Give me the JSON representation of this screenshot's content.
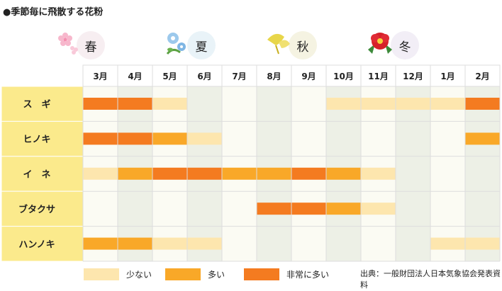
{
  "title": "●季節毎に飛散する花粉",
  "seasons": [
    "春",
    "夏",
    "秋",
    "冬"
  ],
  "months": [
    "3月",
    "4月",
    "5月",
    "6月",
    "7月",
    "8月",
    "9月",
    "10月",
    "11月",
    "12月",
    "1月",
    "2月"
  ],
  "plants": [
    "ス　ギ",
    "ヒノキ",
    "イ　ネ",
    "ブタクサ",
    "ハンノキ"
  ],
  "legend": [
    {
      "label": "少ない",
      "level": 1,
      "color": "#FDE6AE"
    },
    {
      "label": "多い",
      "level": 2,
      "color": "#F9A828"
    },
    {
      "label": "非常に多い",
      "level": 3,
      "color": "#F47B20"
    }
  ],
  "source": "出典：一般財団法人日本気象協会発表資料",
  "colors": {
    "header_bg": "#FBEA8C",
    "season_bg": [
      "#F7EEF1",
      "#E9F3F8",
      "#F5F3E2",
      "#F2EEF6"
    ],
    "grid_line": "#DDDDDD",
    "col_light": "#FBFBF3",
    "col_dark": "#EDF0E6"
  },
  "chart_data": {
    "type": "heatmap",
    "title": "●季節毎に飛散する花粉",
    "x": [
      "3月",
      "4月",
      "5月",
      "6月",
      "7月",
      "8月",
      "9月",
      "10月",
      "11月",
      "12月",
      "1月",
      "2月"
    ],
    "y": [
      "ス　ギ",
      "ヒノキ",
      "イ　ネ",
      "ブタクサ",
      "ハンノキ"
    ],
    "scale": {
      "0": "",
      "1": "少ない",
      "2": "多い",
      "3": "非常に多い"
    },
    "values": [
      [
        3,
        3,
        1,
        0,
        0,
        0,
        0,
        1,
        1,
        1,
        1,
        3
      ],
      [
        3,
        3,
        2,
        1,
        0,
        0,
        0,
        0,
        0,
        0,
        0,
        2
      ],
      [
        1,
        2,
        3,
        3,
        2,
        2,
        3,
        2,
        1,
        0,
        0,
        0
      ],
      [
        0,
        0,
        0,
        0,
        0,
        3,
        3,
        2,
        1,
        0,
        0,
        0
      ],
      [
        2,
        2,
        1,
        1,
        0,
        0,
        0,
        0,
        0,
        0,
        1,
        1
      ]
    ]
  }
}
